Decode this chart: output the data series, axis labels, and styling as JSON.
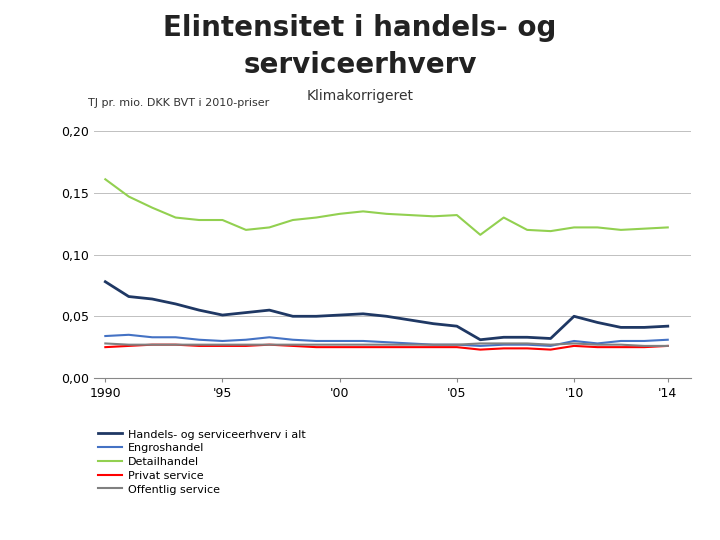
{
  "title1": "Elintensitet i handels- og",
  "title2": "serviceerhverv",
  "subtitle": "Klimakorrigeret",
  "ylabel": "TJ pr. mio. DKK BVT i 2010-priser",
  "years": [
    1990,
    1991,
    1992,
    1993,
    1994,
    1995,
    1996,
    1997,
    1998,
    1999,
    2000,
    2001,
    2002,
    2003,
    2004,
    2005,
    2006,
    2007,
    2008,
    2009,
    2010,
    2011,
    2012,
    2013,
    2014
  ],
  "xtick_labels": [
    "1990",
    "'95",
    "'00",
    "'05",
    "'10",
    "'14"
  ],
  "xtick_positions": [
    1990,
    1995,
    2000,
    2005,
    2010,
    2014
  ],
  "handels": [
    0.078,
    0.066,
    0.064,
    0.06,
    0.055,
    0.051,
    0.053,
    0.055,
    0.05,
    0.05,
    0.051,
    0.052,
    0.05,
    0.047,
    0.044,
    0.042,
    0.031,
    0.033,
    0.033,
    0.032,
    0.05,
    0.045,
    0.041,
    0.041,
    0.042
  ],
  "engros": [
    0.034,
    0.035,
    0.033,
    0.033,
    0.031,
    0.03,
    0.031,
    0.033,
    0.031,
    0.03,
    0.03,
    0.03,
    0.029,
    0.028,
    0.027,
    0.027,
    0.026,
    0.027,
    0.027,
    0.026,
    0.03,
    0.028,
    0.03,
    0.03,
    0.031
  ],
  "detail": [
    0.161,
    0.147,
    0.138,
    0.13,
    0.128,
    0.128,
    0.12,
    0.122,
    0.128,
    0.13,
    0.133,
    0.135,
    0.133,
    0.132,
    0.131,
    0.132,
    0.116,
    0.13,
    0.12,
    0.119,
    0.122,
    0.122,
    0.12,
    0.121,
    0.122
  ],
  "privat": [
    0.025,
    0.026,
    0.027,
    0.027,
    0.026,
    0.026,
    0.026,
    0.027,
    0.026,
    0.025,
    0.025,
    0.025,
    0.025,
    0.025,
    0.025,
    0.025,
    0.023,
    0.024,
    0.024,
    0.023,
    0.026,
    0.025,
    0.025,
    0.025,
    0.026
  ],
  "offentlig": [
    0.028,
    0.027,
    0.027,
    0.027,
    0.027,
    0.027,
    0.027,
    0.027,
    0.027,
    0.027,
    0.027,
    0.027,
    0.027,
    0.027,
    0.027,
    0.027,
    0.028,
    0.028,
    0.028,
    0.027,
    0.028,
    0.027,
    0.027,
    0.026,
    0.026
  ],
  "handels_color": "#1F3864",
  "engros_color": "#4472C4",
  "detail_color": "#92D050",
  "privat_color": "#FF0000",
  "offentlig_color": "#808080",
  "ylim": [
    0.0,
    0.21
  ],
  "yticks": [
    0.0,
    0.05,
    0.1,
    0.15,
    0.2
  ],
  "ytick_labels": [
    "0,00",
    "0,05",
    "0,10",
    "0,15",
    "0,20"
  ],
  "bg_color": "#FFFFFF",
  "grid_color": "#C0C0C0",
  "title_fontsize": 20,
  "subtitle_fontsize": 10,
  "ylabel_fontsize": 8,
  "tick_fontsize": 9,
  "legend_fontsize": 8
}
